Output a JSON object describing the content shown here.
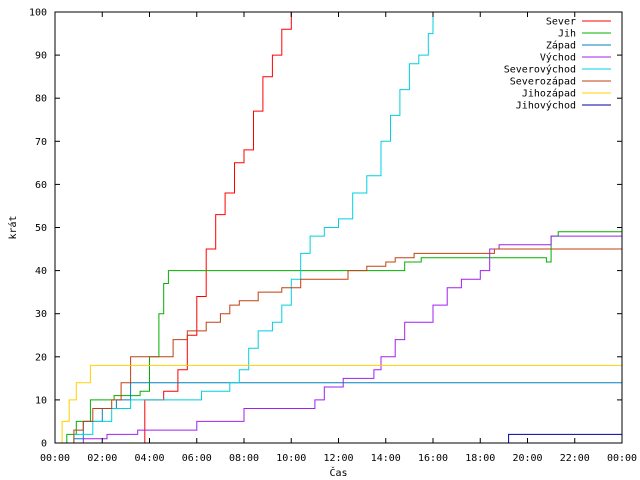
{
  "chart_data": {
    "type": "line",
    "title": "",
    "xlabel": "Čas",
    "ylabel": "krát",
    "xlim": [
      0,
      24
    ],
    "ylim": [
      0,
      100
    ],
    "x_ticks": [
      {
        "value": 0,
        "label": "00:00"
      },
      {
        "value": 2,
        "label": "02:00"
      },
      {
        "value": 4,
        "label": "04:00"
      },
      {
        "value": 6,
        "label": "06:00"
      },
      {
        "value": 8,
        "label": "08:00"
      },
      {
        "value": 10,
        "label": "10:00"
      },
      {
        "value": 12,
        "label": "12:00"
      },
      {
        "value": 14,
        "label": "14:00"
      },
      {
        "value": 16,
        "label": "16:00"
      },
      {
        "value": 18,
        "label": "18:00"
      },
      {
        "value": 20,
        "label": "20:00"
      },
      {
        "value": 22,
        "label": "22:00"
      },
      {
        "value": 24,
        "label": "00:00"
      }
    ],
    "y_ticks": [
      0,
      10,
      20,
      30,
      40,
      50,
      60,
      70,
      80,
      90,
      100
    ],
    "grid": false,
    "legend_position": "top-right",
    "series": [
      {
        "name": "Sever",
        "color": "#ff0000",
        "points": [
          [
            0,
            0
          ],
          [
            3.8,
            10
          ],
          [
            4.6,
            12
          ],
          [
            5.2,
            17
          ],
          [
            5.6,
            25
          ],
          [
            6.0,
            34
          ],
          [
            6.4,
            45
          ],
          [
            6.8,
            53
          ],
          [
            7.2,
            58
          ],
          [
            7.6,
            65
          ],
          [
            8.0,
            68
          ],
          [
            8.4,
            77
          ],
          [
            8.8,
            85
          ],
          [
            9.2,
            90
          ],
          [
            9.6,
            96
          ],
          [
            10.0,
            100
          ],
          [
            10.1,
            100
          ]
        ]
      },
      {
        "name": "Jih",
        "color": "#00b000",
        "points": [
          [
            0,
            0
          ],
          [
            0.5,
            2
          ],
          [
            0.9,
            5
          ],
          [
            1.5,
            10
          ],
          [
            2.5,
            11
          ],
          [
            3.6,
            12
          ],
          [
            4.0,
            20
          ],
          [
            4.4,
            30
          ],
          [
            4.6,
            37
          ],
          [
            4.8,
            40
          ],
          [
            14.5,
            40
          ],
          [
            14.8,
            42
          ],
          [
            15.5,
            43
          ],
          [
            20.8,
            42
          ],
          [
            21.0,
            48
          ],
          [
            21.3,
            49
          ],
          [
            24,
            49
          ]
        ]
      },
      {
        "name": "Západ",
        "color": "#0080c0",
        "points": [
          [
            0,
            0
          ],
          [
            0.8,
            1
          ],
          [
            1.2,
            5
          ],
          [
            2.0,
            8
          ],
          [
            2.6,
            10
          ],
          [
            3.2,
            14
          ],
          [
            24,
            14
          ]
        ]
      },
      {
        "name": "Východ",
        "color": "#a020f0",
        "points": [
          [
            0,
            0
          ],
          [
            1.2,
            1
          ],
          [
            2.2,
            2
          ],
          [
            3.5,
            3
          ],
          [
            6.0,
            5
          ],
          [
            8.0,
            8
          ],
          [
            11.0,
            10
          ],
          [
            11.4,
            13
          ],
          [
            12.2,
            15
          ],
          [
            13.5,
            17
          ],
          [
            13.8,
            20
          ],
          [
            14.4,
            24
          ],
          [
            14.8,
            28
          ],
          [
            16.0,
            32
          ],
          [
            16.6,
            36
          ],
          [
            17.2,
            38
          ],
          [
            18.0,
            40
          ],
          [
            18.4,
            45
          ],
          [
            18.8,
            46
          ],
          [
            20.4,
            46
          ],
          [
            21.0,
            48
          ],
          [
            24,
            48
          ]
        ]
      },
      {
        "name": "Severovýchod",
        "color": "#00d0e0",
        "points": [
          [
            0,
            0
          ],
          [
            0.8,
            2
          ],
          [
            1.6,
            5
          ],
          [
            2.4,
            8
          ],
          [
            3.2,
            10
          ],
          [
            6.0,
            10
          ],
          [
            6.2,
            12
          ],
          [
            7.4,
            14
          ],
          [
            7.8,
            17
          ],
          [
            8.2,
            22
          ],
          [
            8.6,
            26
          ],
          [
            9.2,
            28
          ],
          [
            9.6,
            32
          ],
          [
            10.0,
            38
          ],
          [
            10.4,
            44
          ],
          [
            10.8,
            48
          ],
          [
            11.4,
            50
          ],
          [
            12.0,
            52
          ],
          [
            12.6,
            58
          ],
          [
            13.2,
            62
          ],
          [
            13.8,
            70
          ],
          [
            14.2,
            76
          ],
          [
            14.6,
            82
          ],
          [
            15.0,
            88
          ],
          [
            15.4,
            90
          ],
          [
            15.8,
            95
          ],
          [
            16.0,
            100
          ],
          [
            16.1,
            100
          ]
        ]
      },
      {
        "name": "Severozápad",
        "color": "#c04010",
        "points": [
          [
            0,
            0
          ],
          [
            0.8,
            3
          ],
          [
            1.2,
            5
          ],
          [
            1.6,
            8
          ],
          [
            2.4,
            10
          ],
          [
            2.8,
            14
          ],
          [
            3.2,
            20
          ],
          [
            4.8,
            20
          ],
          [
            5.0,
            24
          ],
          [
            5.6,
            26
          ],
          [
            6.4,
            28
          ],
          [
            7.0,
            30
          ],
          [
            7.4,
            32
          ],
          [
            7.8,
            33
          ],
          [
            8.6,
            35
          ],
          [
            9.0,
            35
          ],
          [
            9.6,
            36
          ],
          [
            10.4,
            38
          ],
          [
            11.2,
            38
          ],
          [
            12.4,
            40
          ],
          [
            13.2,
            41
          ],
          [
            14.0,
            42
          ],
          [
            14.4,
            43
          ],
          [
            15.2,
            44
          ],
          [
            16.4,
            44
          ],
          [
            18.0,
            44
          ],
          [
            18.6,
            45
          ],
          [
            24,
            45
          ]
        ]
      },
      {
        "name": "Jihozápad",
        "color": "#ffd000",
        "points": [
          [
            0,
            0
          ],
          [
            0.3,
            5
          ],
          [
            0.6,
            10
          ],
          [
            0.9,
            14
          ],
          [
            1.5,
            18
          ],
          [
            24,
            18
          ]
        ]
      },
      {
        "name": "Jihovýchod",
        "color": "#0000a0",
        "points": [
          [
            0,
            0
          ],
          [
            19.1,
            0
          ],
          [
            19.2,
            2
          ],
          [
            24,
            2
          ]
        ]
      }
    ]
  }
}
